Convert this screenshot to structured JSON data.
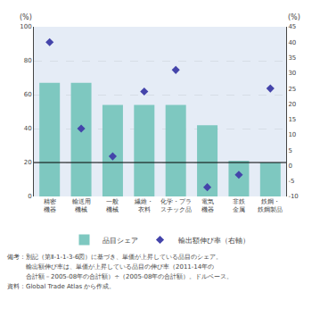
{
  "chart_data": {
    "type": "bar",
    "categories": [
      "精密\n機器",
      "輸送用\n機械",
      "一般\n機械",
      "繊維・\n衣料",
      "化学・プラ\nスチック品",
      "電気\n機器",
      "非鉄\n金属",
      "鉄鋼・\n鉄鋼製品"
    ],
    "series": [
      {
        "name": "品目シェア",
        "type": "bar",
        "color": "#7EC8C0",
        "values": [
          67,
          67,
          54,
          54,
          54,
          42,
          21,
          20
        ]
      },
      {
        "name": "輸出額伸び率（右軸）",
        "type": "scatter",
        "marker": "diamond",
        "axis": "y2",
        "color": "#4444AA",
        "values": [
          40,
          12,
          3,
          24,
          31,
          -7,
          -3,
          25
        ]
      }
    ],
    "ylabel": "(%)",
    "y2label": "(%)",
    "ylim": [
      0,
      100
    ],
    "yticks": [
      0,
      20,
      40,
      60,
      80,
      100
    ],
    "y2lim": [
      -10,
      45
    ],
    "y2ticks": [
      -10,
      -5,
      0,
      5,
      10,
      15,
      20,
      25,
      30,
      35,
      40,
      45
    ],
    "reference_line": 20,
    "grid": true,
    "legend": "bottom",
    "annotations": [
      "備考：別記（第Ⅱ-1-1-3-6図）に基づき、単価が上昇している品目のシェア。",
      "　　　輸出額伸び率は、単価が上昇している品目の伸び率（2011-14年の",
      "　　　合計額－2005-08年の合計額）÷（2005-08年の合計額）。ドルベース。",
      "資料：Global Trade Atlas から作成。"
    ]
  }
}
